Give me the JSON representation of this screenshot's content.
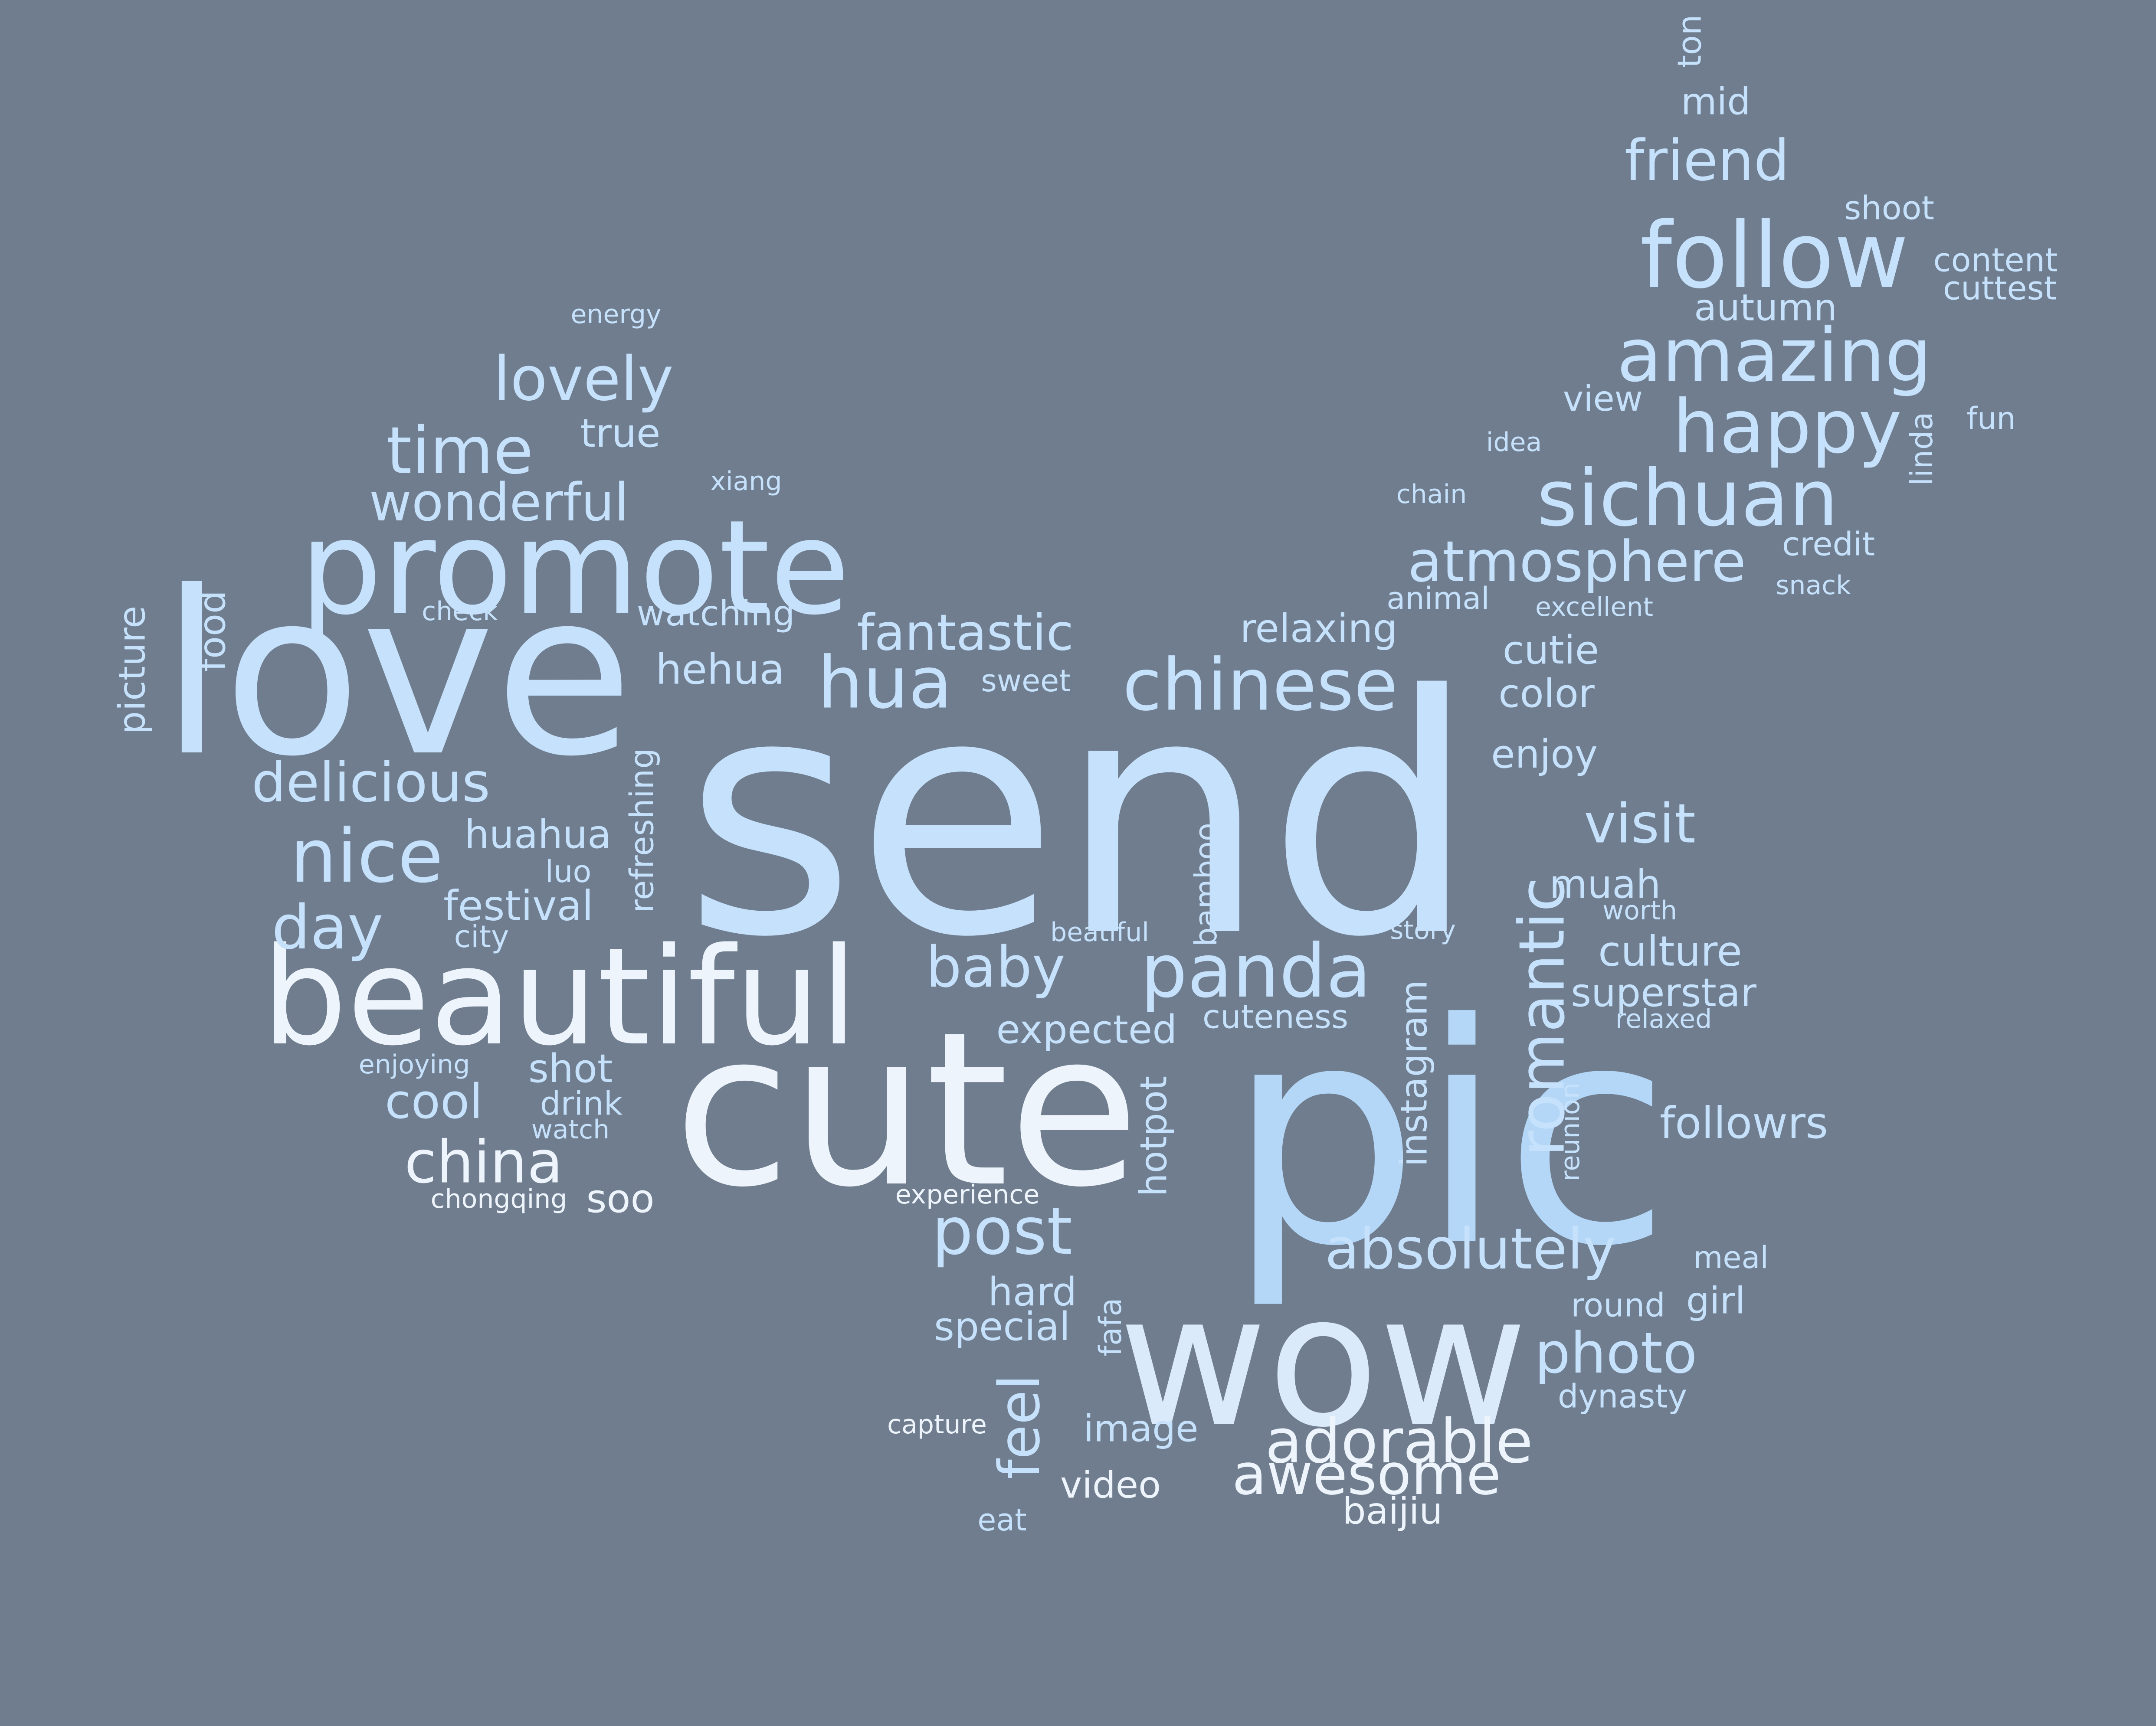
{
  "word_cloud": {
    "background": "#6f7d8e",
    "palette": [
      "#c6e1fb",
      "#b4d7f7",
      "#dbeafb",
      "#eef4fb",
      "#a8d0f4"
    ],
    "orientation_note": "some words rotated vertically",
    "words": [
      "send",
      "pic",
      "love",
      "cute",
      "wow",
      "beautiful",
      "promote",
      "follow",
      "sichuan",
      "amazing",
      "happy",
      "chinese",
      "panda",
      "hua",
      "nice",
      "romantic",
      "adorable",
      "atmosphere",
      "awesome",
      "time",
      "lovely",
      "wonderful",
      "fantastic",
      "delicious",
      "day",
      "baby",
      "post",
      "china",
      "absolutely",
      "photo",
      "visit",
      "friend",
      "hehua",
      "huahua",
      "festival",
      "refreshing",
      "cool",
      "shot",
      "culture",
      "superstar",
      "followrs",
      "instagram",
      "hotpot",
      "bamboo",
      "expected",
      "cuteness",
      "feel",
      "video",
      "image",
      "special",
      "hard",
      "baijiu",
      "eat",
      "capture",
      "fafa",
      "girl",
      "round",
      "meal",
      "dynasty",
      "muah",
      "worth",
      "enjoy",
      "color",
      "cutie",
      "relaxing",
      "animal",
      "excellent",
      "credit",
      "snack",
      "linda",
      "fun",
      "view",
      "idea",
      "chain",
      "autumn",
      "content",
      "cuttest",
      "shoot",
      "mid",
      "ton",
      "energy",
      "true",
      "xiang",
      "check",
      "watching",
      "sweet",
      "picture",
      "food",
      "luo",
      "city",
      "enjoying",
      "drink",
      "watch",
      "chongqing",
      "soo",
      "experience",
      "beatiful",
      "story",
      "relaxed",
      "reunion"
    ]
  }
}
